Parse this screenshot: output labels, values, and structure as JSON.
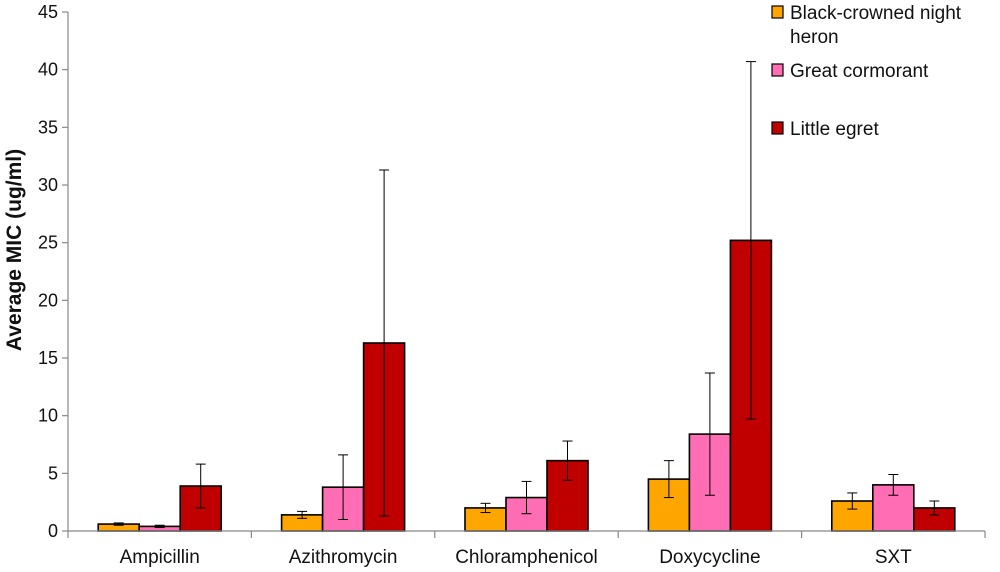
{
  "chart_data": {
    "type": "bar",
    "title": "",
    "xlabel": "",
    "ylabel": "Average MIC (ug/ml)",
    "ylim": [
      0,
      45
    ],
    "yticks": [
      0,
      5,
      10,
      15,
      20,
      25,
      30,
      35,
      40,
      45
    ],
    "grid": false,
    "legend_position": "top-right",
    "categories": [
      "Ampicillin",
      "Azithromycin",
      "Chloramphenicol",
      "Doxycycline",
      "SXT"
    ],
    "series": [
      {
        "name": "Black-crowned night heron",
        "legend_lines": [
          "Black-crowned night",
          "heron"
        ],
        "color": "#FFA500",
        "values": [
          0.6,
          1.4,
          2.0,
          4.5,
          2.6
        ],
        "errors": [
          0.1,
          0.3,
          0.4,
          1.6,
          0.7
        ]
      },
      {
        "name": "Great cormorant",
        "legend_lines": [
          "Great cormorant"
        ],
        "color": "#FF6EB4",
        "values": [
          0.4,
          3.8,
          2.9,
          8.4,
          4.0
        ],
        "errors": [
          0.1,
          2.8,
          1.4,
          5.3,
          0.9
        ]
      },
      {
        "name": "Little egret",
        "legend_lines": [
          "Little egret"
        ],
        "color": "#C00000",
        "values": [
          3.9,
          16.3,
          6.1,
          25.2,
          2.0
        ],
        "errors": [
          1.9,
          15.0,
          1.7,
          15.5,
          0.6
        ]
      }
    ]
  }
}
